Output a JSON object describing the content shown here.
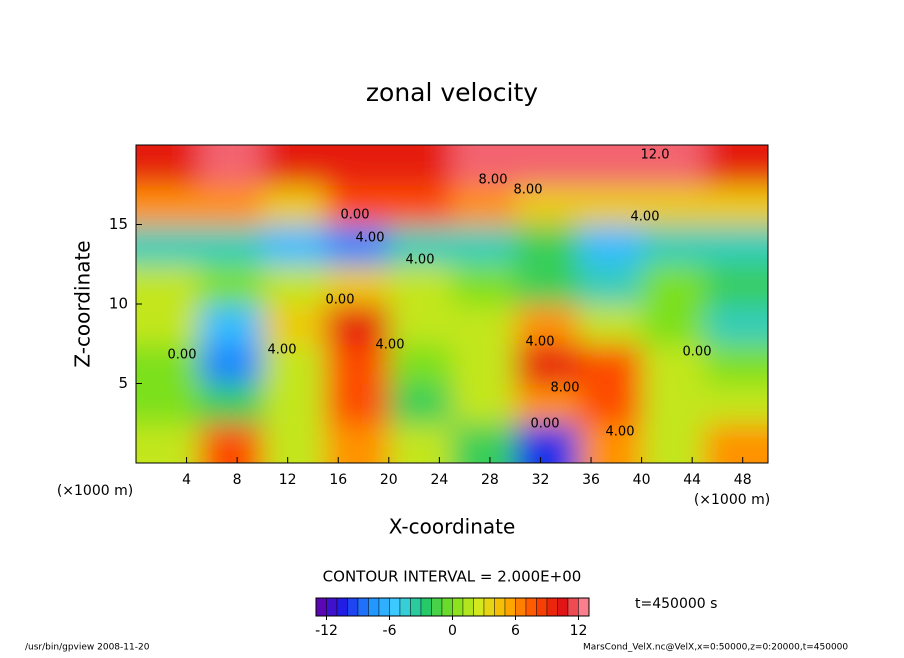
{
  "chart_data": {
    "type": "heatmap",
    "title": "zonal velocity",
    "x_label": "X-coordinate",
    "y_label": "Z-coordinate",
    "x_unit": "(×1000 m)",
    "y_unit": "(×1000 m)",
    "xbins": [
      0,
      5,
      10,
      15,
      20,
      25,
      30,
      35,
      40,
      45,
      50
    ],
    "zbins": [
      0,
      2.5,
      5,
      7.5,
      10,
      12.5,
      15,
      17.5,
      20
    ],
    "values": [
      [
        2,
        8,
        2,
        6,
        2,
        -2,
        -10,
        6,
        2,
        6
      ],
      [
        0,
        -2,
        2,
        8,
        -2,
        2,
        6,
        8,
        2,
        2
      ],
      [
        0,
        -8,
        2,
        8,
        0,
        2,
        10,
        8,
        2,
        0
      ],
      [
        2,
        -6,
        4,
        10,
        2,
        2,
        6,
        2,
        0,
        -4
      ],
      [
        2,
        0,
        2,
        4,
        2,
        0,
        -2,
        -4,
        0,
        -2
      ],
      [
        -4,
        -4,
        -6,
        -8,
        -4,
        -4,
        -2,
        -6,
        -4,
        -4
      ],
      [
        6,
        6,
        4,
        8,
        8,
        6,
        4,
        4,
        4,
        4
      ],
      [
        10,
        12,
        10,
        10,
        10,
        12,
        12,
        12,
        12,
        10
      ]
    ],
    "xlim": [
      0,
      50
    ],
    "ylim": [
      0,
      20
    ],
    "xticks": [
      4,
      8,
      12,
      16,
      20,
      24,
      28,
      32,
      36,
      40,
      44,
      48
    ],
    "yticks": [
      5,
      10,
      15
    ],
    "colors": [
      "#6a00a8",
      "#1e1ee6",
      "#1e90ff",
      "#3fd0ff",
      "#22c86a",
      "#7be01e",
      "#d8e81e",
      "#ffb000",
      "#ff5000",
      "#e01010",
      "#ff99aa"
    ],
    "clim": [
      -13,
      13
    ],
    "cticks": [
      -12,
      -6,
      0,
      6,
      12
    ],
    "contour_interval": "CONTOUR INTERVAL = 2.000E+00",
    "time": "t=450000 s",
    "contour_labels": [
      "12.0",
      "8.00",
      "8.00",
      "4.00",
      "0.00",
      "4.00",
      "4.00",
      "0.00",
      "4.00",
      "4.00",
      "8.00",
      "0.00",
      "4.00",
      "0.00",
      "0.00",
      "4.00"
    ],
    "footer_left": "/usr/bin/gpview  2008-11-20",
    "footer_right": "MarsCond_VelX.nc@VelX,x=0:50000,z=0:20000,t=450000"
  }
}
